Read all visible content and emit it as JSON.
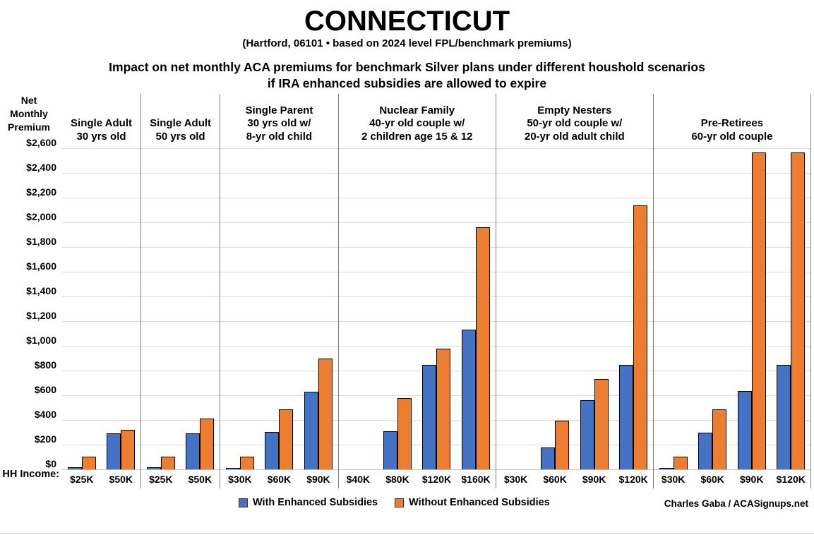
{
  "header": {
    "title": "CONNECTICUT",
    "subtitle": "(Hartford, 06101 • based on 2024 level FPL/benchmark premiums)",
    "description_line1": "Impact on net monthly ACA premiums for benchmark Silver plans under different houshold scenarios",
    "description_line2": "if IRA enhanced subsidies are allowed to expire"
  },
  "credit": "Charles Gaba / ACASignups.net",
  "chart_data": {
    "type": "bar",
    "title": "Impact on net monthly ACA premiums for benchmark Silver plans under different houshold scenarios if IRA enhanced subsidies are allowed to expire",
    "y_axis_title": "Net\nMonthly\nPremium",
    "x_axis_title": "HH Income:",
    "ylim": [
      0,
      2600
    ],
    "ytick_step": 200,
    "ytick_labels": [
      "$0",
      "$200",
      "$400",
      "$600",
      "$800",
      "$1,000",
      "$1,200",
      "$1,400",
      "$1,600",
      "$1,800",
      "$2,000",
      "$2,200",
      "$2,400",
      "$2,600"
    ],
    "grid": true,
    "legend_position": "bottom",
    "series_names": [
      "With Enhanced Subsidies",
      "Without Enhanced Subsidies"
    ],
    "colors": {
      "with_enhanced": "#4472C4",
      "without_enhanced": "#ED7D31",
      "gridline": "#D9D9D9",
      "divider": "#7F7F7F"
    },
    "groups": [
      {
        "label": "Single Adult\n30 yrs old",
        "categories": [
          "$25K",
          "$50K"
        ],
        "series": [
          {
            "name": "With Enhanced Subsidies",
            "values": [
              20,
              290
            ]
          },
          {
            "name": "Without Enhanced Subsidies",
            "values": [
              105,
              320
            ]
          }
        ]
      },
      {
        "label": "Single Adult\n50 yrs old",
        "categories": [
          "$25K",
          "$50K"
        ],
        "series": [
          {
            "name": "With Enhanced Subsidies",
            "values": [
              20,
              290
            ]
          },
          {
            "name": "Without Enhanced Subsidies",
            "values": [
              105,
              410
            ]
          }
        ]
      },
      {
        "label": "Single Parent\n30 yrs old w/\n8-yr old child",
        "categories": [
          "$30K",
          "$60K",
          "$90K"
        ],
        "series": [
          {
            "name": "With Enhanced Subsidies",
            "values": [
              10,
              305,
              630
            ]
          },
          {
            "name": "Without Enhanced Subsidies",
            "values": [
              105,
              485,
              895
            ]
          }
        ]
      },
      {
        "label": "Nuclear Family\n40-yr old couple w/\n2 children age 15 & 12",
        "categories": [
          "$40K",
          "$80K",
          "$120K",
          "$160K"
        ],
        "series": [
          {
            "name": "With Enhanced Subsidies",
            "values": [
              0,
              310,
              845,
              1130
            ]
          },
          {
            "name": "Without Enhanced Subsidies",
            "values": [
              0,
              580,
              975,
              1960
            ]
          }
        ]
      },
      {
        "label": "Empty Nesters\n50-yr old couple w/\n20-yr old adult child",
        "categories": [
          "$30K",
          "$60K",
          "$90K",
          "$120K"
        ],
        "series": [
          {
            "name": "With Enhanced Subsidies",
            "values": [
              0,
              180,
              560,
              845
            ]
          },
          {
            "name": "Without Enhanced Subsidies",
            "values": [
              0,
              395,
              730,
              2140
            ]
          }
        ]
      },
      {
        "label": "Pre-Retirees\n60-yr old couple",
        "categories": [
          "$30K",
          "$60K",
          "$90K",
          "$120K"
        ],
        "series": [
          {
            "name": "With Enhanced Subsidies",
            "values": [
              10,
              300,
              635,
              845
            ]
          },
          {
            "name": "Without Enhanced Subsidies",
            "values": [
              105,
              485,
              2565,
              2565
            ]
          }
        ]
      }
    ]
  },
  "legend": {
    "items": [
      {
        "label": "With Enhanced Subsidies",
        "color": "#4472C4"
      },
      {
        "label": "Without Enhanced Subsidies",
        "color": "#ED7D31"
      }
    ]
  }
}
